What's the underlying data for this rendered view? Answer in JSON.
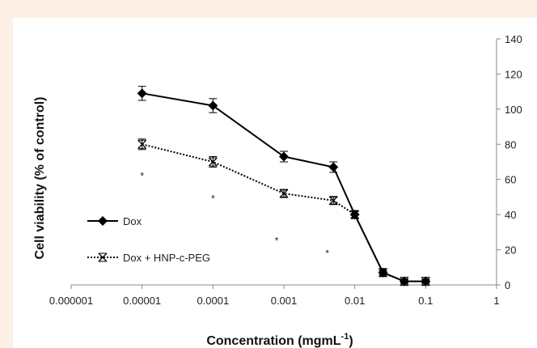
{
  "chart_data": {
    "type": "line",
    "xlabel": "Concentration  (mgmL",
    "xlabel_sup": "-1",
    "xlabel_end": ")",
    "ylabel": "Cell viability (% of control)",
    "x_scale": "log",
    "xlim": [
      1e-06,
      1
    ],
    "ylim": [
      0,
      140
    ],
    "x_ticks": [
      1e-06,
      1e-05,
      0.0001,
      0.001,
      0.01,
      0.1,
      1
    ],
    "x_tick_labels": [
      "0.000001",
      "0.00001",
      "0.0001",
      "0.001",
      "0.01",
      "0.1",
      "1"
    ],
    "y_ticks": [
      0,
      20,
      40,
      60,
      80,
      100,
      120,
      140
    ],
    "y_tick_labels": [
      "0",
      "20",
      "40",
      "60",
      "80",
      "100",
      "120",
      "140"
    ],
    "y_axis_side": "right",
    "grid": false,
    "legend_position": "left, inside plot",
    "series": [
      {
        "name": "Dox",
        "marker": "diamond",
        "line_style": "solid",
        "color": "#000000",
        "x": [
          1e-05,
          0.0001,
          0.001,
          0.005,
          0.01,
          0.025,
          0.05,
          0.1
        ],
        "y": [
          109,
          102,
          73,
          67,
          40,
          7,
          2,
          2
        ],
        "err": [
          4,
          4,
          3,
          3,
          2,
          2,
          1,
          1
        ]
      },
      {
        "name": "Dox + HNP-c-PEG",
        "marker": "x-cross",
        "line_style": "dotted",
        "color": "#000000",
        "x": [
          1e-05,
          0.0001,
          0.001,
          0.005,
          0.01,
          0.025,
          0.05,
          0.1
        ],
        "y": [
          80,
          70,
          52,
          48,
          40,
          7,
          2,
          2
        ],
        "err": [
          3,
          3,
          2,
          2,
          2,
          1,
          1,
          1
        ]
      }
    ],
    "annotations": [
      {
        "text": "*",
        "x": 1e-05,
        "y": 62
      },
      {
        "text": "*",
        "x": 0.0001,
        "y": 49
      },
      {
        "text": "*",
        "x": 0.00079,
        "y": 25
      },
      {
        "text": "*",
        "x": 0.0041,
        "y": 18
      }
    ]
  }
}
